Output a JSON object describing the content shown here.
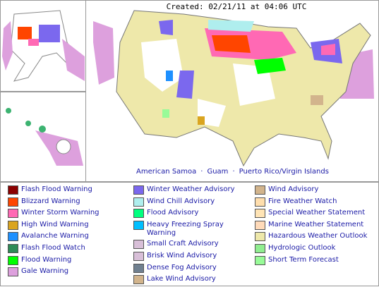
{
  "header": {
    "created": "Created: 02/21/11 at 04:06 UTC"
  },
  "links": {
    "items": [
      "American Samoa",
      "Guam",
      "Puerto Rico/Virgin Islands"
    ],
    "separator": "·"
  },
  "legend": {
    "columns": [
      [
        {
          "label": "Flash Flood Warning",
          "color": "#8b0000"
        },
        {
          "label": "Blizzard Warning",
          "color": "#ff4500"
        },
        {
          "label": "Winter Storm Warning",
          "color": "#ff69b4"
        },
        {
          "label": "High Wind Warning",
          "color": "#daa520"
        },
        {
          "label": "Avalanche Warning",
          "color": "#1e90ff"
        },
        {
          "label": "Flash Flood Watch",
          "color": "#2e8b57"
        },
        {
          "label": "Flood Warning",
          "color": "#00ff00"
        },
        {
          "label": "Gale Warning",
          "color": "#dda0dd"
        }
      ],
      [
        {
          "label": "Winter Weather Advisory",
          "color": "#7b68ee"
        },
        {
          "label": "Wind Chill Advisory",
          "color": "#afeeee"
        },
        {
          "label": "Flood Advisory",
          "color": "#00ff7f"
        },
        {
          "label": "Heavy Freezing Spray Warning",
          "color": "#00bfff"
        },
        {
          "label": "Small Craft Advisory",
          "color": "#d8bfd8"
        },
        {
          "label": "Brisk Wind Advisory",
          "color": "#d8bfd8"
        },
        {
          "label": "Dense Fog Advisory",
          "color": "#708090"
        },
        {
          "label": "Lake Wind Advisory",
          "color": "#d2b48c"
        }
      ],
      [
        {
          "label": "Wind Advisory",
          "color": "#d2b48c"
        },
        {
          "label": "Fire Weather Watch",
          "color": "#ffdead"
        },
        {
          "label": "Special Weather Statement",
          "color": "#ffe4b5"
        },
        {
          "label": "Marine Weather Statement",
          "color": "#ffdab9"
        },
        {
          "label": "Hazardous Weather Outlook",
          "color": "#eee8aa"
        },
        {
          "label": "Hydrologic Outlook",
          "color": "#90ee90"
        },
        {
          "label": "Short Term Forecast",
          "color": "#98fb98"
        }
      ]
    ]
  }
}
